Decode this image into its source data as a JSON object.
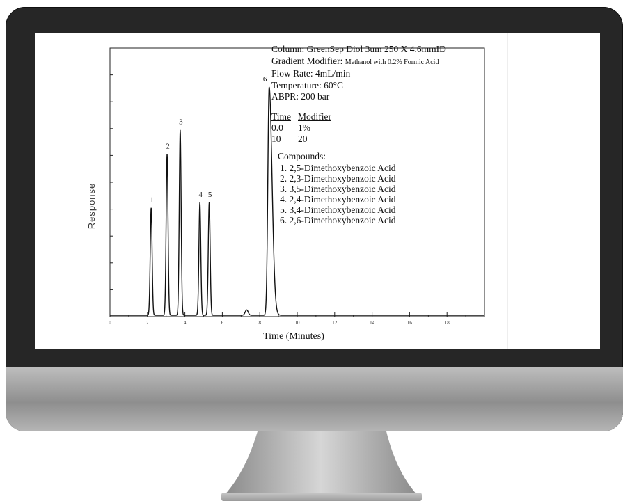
{
  "colors": {
    "bezel": "#262626",
    "chin": "#a9a9a9",
    "stand": "#b0b0b0",
    "trace": "#111111"
  },
  "info": {
    "column": "Column: GreenSep Diol 3um 250 X 4.6mmID",
    "gradient_label": "Gradient Modifier:",
    "gradient_value": "Methanol with 0.2% Formic Acid",
    "flow": "Flow Rate: 4mL/min",
    "temperature": "Temperature: 60°C",
    "abpr": "ABPR: 200 bar"
  },
  "modifier_table": {
    "headers": [
      "Time",
      "Modifier"
    ],
    "rows": [
      [
        "0.0",
        "1%"
      ],
      [
        "10",
        "20"
      ]
    ]
  },
  "compounds": {
    "title": "Compounds:",
    "items": [
      "1.  2,5-Dimethoxybenzoic Acid",
      "2.  2,3-Dimethoxybenzoic Acid",
      "3.  3,5-Dimethoxybenzoic Acid",
      "4.  2,4-Dimethoxybenzoic Acid",
      "5.  3,4-Dimethoxybenzoic Acid",
      "6.  2,6-Dimethoxybenzoic Acid"
    ]
  },
  "chart_data": {
    "type": "line",
    "title": "",
    "xlabel": "Time (Minutes)",
    "ylabel": "Response",
    "xlim": [
      0,
      20
    ],
    "ylim": [
      0,
      1.0
    ],
    "x_ticks": [
      0,
      2,
      4,
      6,
      8,
      10,
      12,
      14,
      16,
      18
    ],
    "x_tick_labels": [
      "0",
      "2",
      "4",
      "6",
      "8",
      "10",
      "12",
      "14",
      "16",
      "18"
    ],
    "grid": false,
    "legend": "none",
    "peaks": [
      {
        "label": "1",
        "rt": 2.2,
        "height": 0.4,
        "width": 0.05
      },
      {
        "label": "2",
        "rt": 3.05,
        "height": 0.6,
        "width": 0.05
      },
      {
        "label": "3",
        "rt": 3.75,
        "height": 0.69,
        "width": 0.05
      },
      {
        "label": "4",
        "rt": 4.8,
        "height": 0.42,
        "width": 0.05
      },
      {
        "label": "5",
        "rt": 5.3,
        "height": 0.42,
        "width": 0.05
      },
      {
        "label": "",
        "rt": 7.3,
        "height": 0.02,
        "width": 0.08
      },
      {
        "label": "6",
        "rt": 8.5,
        "height": 0.85,
        "width": 0.07
      }
    ]
  }
}
